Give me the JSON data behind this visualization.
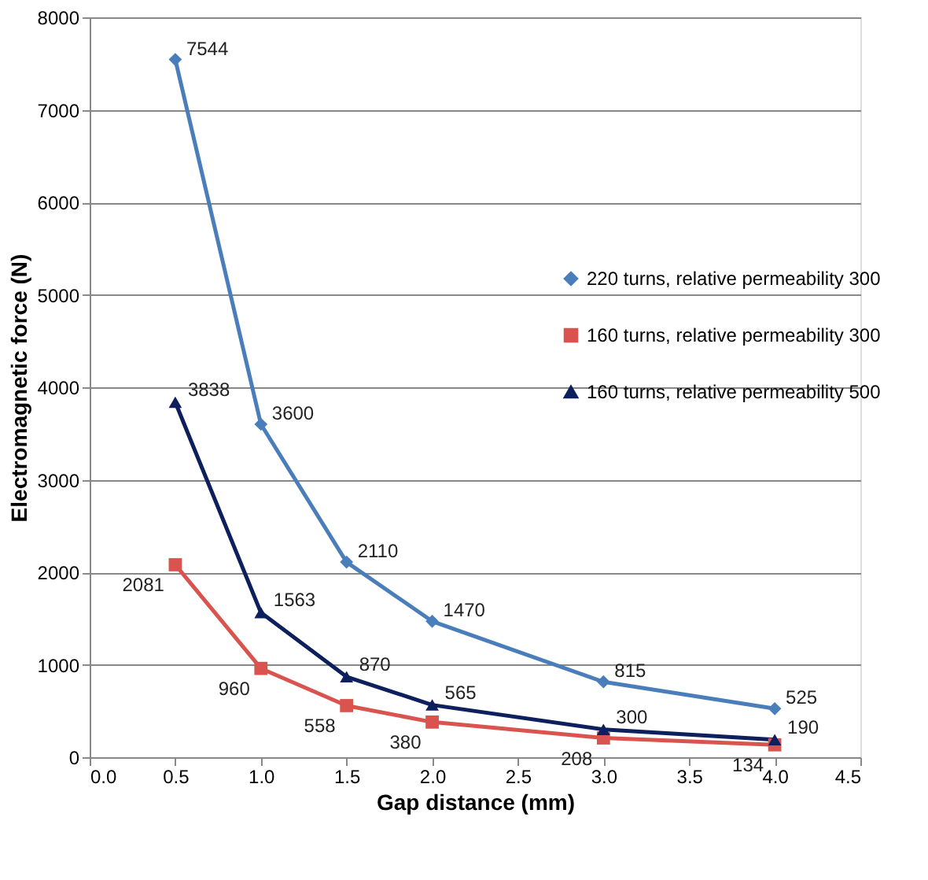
{
  "chart_data": {
    "type": "line",
    "xlabel": "Gap distance (mm)",
    "ylabel": "Electromagnetic force (N)",
    "x": [
      0.5,
      1.0,
      1.5,
      2.0,
      3.0,
      4.0
    ],
    "series": [
      {
        "name": "220 turns, relative permeability 300",
        "color": "#4a7ebb",
        "marker": "diamond",
        "values": [
          7544,
          3600,
          2110,
          1470,
          815,
          525
        ]
      },
      {
        "name": "160 turns,  relative permeability 300",
        "color": "#d9534f",
        "marker": "square",
        "values": [
          2081,
          960,
          558,
          380,
          208,
          134
        ]
      },
      {
        "name": "160 turns, relative permeability 500",
        "color": "#0d1f5c",
        "marker": "triangle",
        "values": [
          3838,
          1563,
          870,
          565,
          300,
          190
        ]
      }
    ],
    "xlim": [
      0,
      4.5
    ],
    "xticks": [
      {
        "value": 0,
        "label": "0.0"
      },
      {
        "value": 0.5,
        "label": "0.5"
      },
      {
        "value": 1,
        "label": "1.0"
      },
      {
        "value": 1.5,
        "label": "1.5"
      },
      {
        "value": 2,
        "label": "2.0"
      },
      {
        "value": 2.5,
        "label": "2.5"
      },
      {
        "value": 3,
        "label": "3.0"
      },
      {
        "value": 3.5,
        "label": "3.5"
      },
      {
        "value": 4,
        "label": "4.0"
      },
      {
        "value": 4.5,
        "label": "4.5"
      }
    ],
    "ylim": [
      0,
      8000
    ],
    "yticks": [
      0,
      1000,
      2000,
      3000,
      4000,
      5000,
      6000,
      7000,
      8000
    ],
    "grid": "y",
    "legend": "right",
    "data_labels": true,
    "line_style": "solid"
  }
}
